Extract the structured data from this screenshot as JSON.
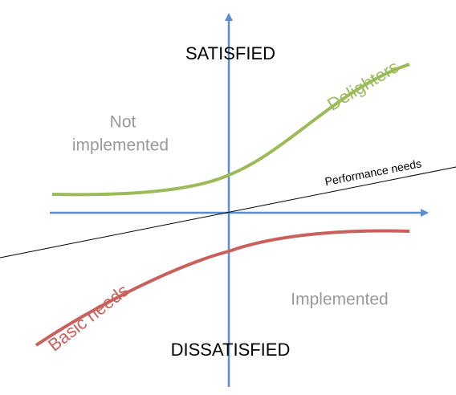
{
  "axes": {
    "top": "SATISFIED",
    "bottom": "DISSATISFIED"
  },
  "regions": {
    "not_implemented": [
      "Not",
      "implemented"
    ],
    "implemented": "Implemented"
  },
  "curves": [
    {
      "label": "Delighters"
    },
    {
      "label": "Performance needs"
    },
    {
      "label": "Basic needs"
    }
  ]
}
